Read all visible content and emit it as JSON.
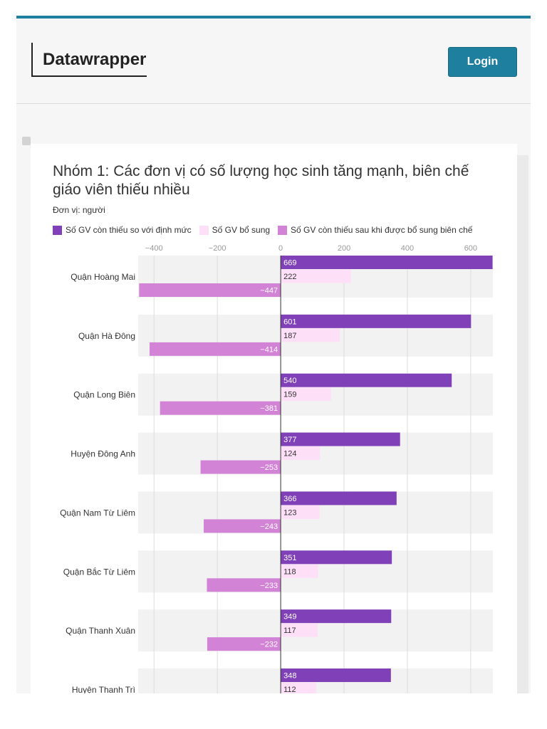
{
  "app": {
    "brand": "Datawrapper",
    "login_label": "Login",
    "accent": "#1e7f9e"
  },
  "chart_data": {
    "type": "bar",
    "orientation": "horizontal-grouped",
    "title": "Nhóm 1: Các đơn vị có số lượng học sinh tăng mạnh, biên chế giáo viên thiếu nhiều",
    "unit": "Đơn vị: người",
    "xlim": [
      -450,
      670
    ],
    "ticks": [
      -400,
      -200,
      0,
      200,
      400,
      600
    ],
    "tick_labels": [
      "−400",
      "−200",
      "0",
      "200",
      "400",
      "600"
    ],
    "legend_position": "top",
    "categories": [
      "Quận Hoàng Mai",
      "Quận Hà Đông",
      "Quận Long Biên",
      "Huyện Đông Anh",
      "Quận Nam Từ Liêm",
      "Quận Bắc Từ Liêm",
      "Quận Thanh Xuân",
      "Huyện Thanh Trì"
    ],
    "series": [
      {
        "name": "Số GV còn thiếu so với định mức",
        "color": "#8040b8",
        "values": [
          669,
          601,
          540,
          377,
          366,
          351,
          349,
          348
        ],
        "labels": [
          "669",
          "601",
          "540",
          "377",
          "366",
          "351",
          "349",
          "348"
        ]
      },
      {
        "name": "Số GV bổ sung",
        "color": "#fde0f8",
        "values": [
          222,
          187,
          159,
          124,
          123,
          118,
          117,
          112
        ],
        "labels": [
          "222",
          "187",
          "159",
          "124",
          "123",
          "118",
          "117",
          "112"
        ]
      },
      {
        "name": "Số GV còn thiếu sau khi được bổ sung biên chế",
        "color": "#d283d6",
        "values": [
          -447,
          -414,
          -381,
          -253,
          -243,
          -233,
          -232,
          null
        ],
        "labels": [
          "−447",
          "−414",
          "−381",
          "−253",
          "−243",
          "−233",
          "−232",
          ""
        ]
      }
    ]
  }
}
